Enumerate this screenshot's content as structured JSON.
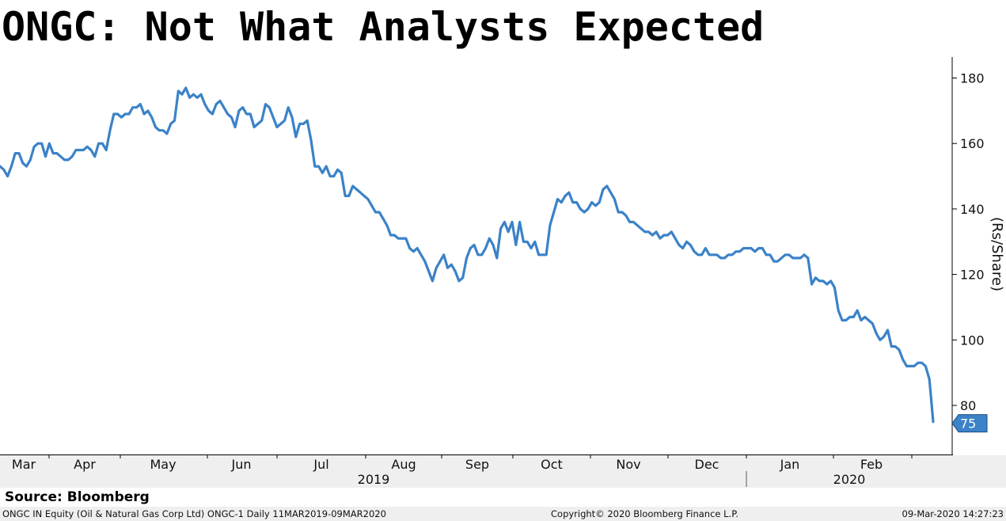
{
  "chart_data": {
    "type": "line",
    "title": "ONGC: Not What Analysts Expected",
    "ylabel": "(Rs/Share)",
    "ylim": [
      70,
      188
    ],
    "yticks": [
      80,
      100,
      120,
      140,
      160,
      180
    ],
    "grid": false,
    "month_labels": [
      "Mar",
      "Apr",
      "May",
      "Jun",
      "Jul",
      "Aug",
      "Sep",
      "Oct",
      "Nov",
      "Dec",
      "Jan",
      "Feb"
    ],
    "year_labels": [
      "2019",
      "2020"
    ],
    "last_value_label": "75",
    "line_color": "#3b82c8",
    "series": [
      {
        "values": [
          153,
          152,
          150,
          153,
          157,
          157,
          154,
          153,
          155,
          159,
          160,
          160,
          156,
          160,
          157,
          157,
          156,
          155,
          155,
          156,
          158,
          158,
          158,
          159,
          158,
          156,
          160,
          160,
          158,
          164,
          169,
          169,
          168,
          169,
          169,
          171,
          171,
          172,
          169,
          170,
          168,
          165,
          164,
          164,
          163,
          166,
          167,
          176,
          175,
          177,
          174,
          175,
          174,
          175,
          172,
          170,
          169,
          172,
          173,
          171,
          169,
          168,
          165,
          170,
          171,
          169,
          169,
          165,
          166,
          167,
          172,
          171,
          168,
          165,
          166,
          167,
          171,
          168,
          162,
          166,
          166,
          167,
          161,
          153,
          153,
          151,
          153,
          150,
          150,
          152,
          151,
          144,
          144,
          147,
          146,
          145,
          144,
          143,
          141,
          139,
          139,
          137,
          135,
          132,
          132,
          131,
          131,
          131,
          128,
          127,
          128,
          126,
          124,
          121,
          118,
          122,
          124,
          126,
          122,
          123,
          121,
          118,
          119,
          125,
          128,
          129,
          126,
          126,
          128,
          131,
          129,
          125,
          134,
          136,
          133,
          136,
          129,
          136,
          130,
          130,
          128,
          130,
          126,
          126,
          126,
          135,
          139,
          143,
          142,
          144,
          145,
          142,
          142,
          140,
          139,
          140,
          142,
          141,
          142,
          146,
          147,
          145,
          143,
          139,
          139,
          138,
          136,
          136,
          135,
          134,
          133,
          133,
          132,
          133,
          131,
          132,
          132,
          133,
          131,
          129,
          128,
          130,
          129,
          127,
          126,
          126,
          128,
          126,
          126,
          126,
          125,
          125,
          126,
          126,
          127,
          127,
          128,
          128,
          128,
          127,
          128,
          128,
          126,
          126,
          124,
          124,
          125,
          126,
          126,
          125,
          125,
          125,
          126,
          125,
          117,
          119,
          118,
          118,
          117,
          118,
          116,
          109,
          106,
          106,
          107,
          107,
          109,
          106,
          107,
          106,
          105,
          102,
          100,
          101,
          103,
          98,
          98,
          97,
          94,
          92,
          92,
          92,
          93,
          93,
          92,
          88,
          75
        ]
      }
    ]
  },
  "source_text": "Source: Bloomberg",
  "footer": {
    "left": "ONGC IN Equity (Oil & Natural Gas Corp Ltd) ONGC-1  Daily 11MAR2019-09MAR2020",
    "center": "Copyright© 2020 Bloomberg Finance L.P.",
    "right": "09-Mar-2020 14:27:23"
  }
}
